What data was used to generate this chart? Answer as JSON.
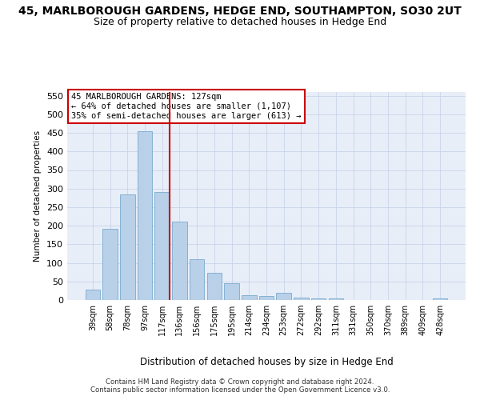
{
  "title": "45, MARLBOROUGH GARDENS, HEDGE END, SOUTHAMPTON, SO30 2UT",
  "subtitle": "Size of property relative to detached houses in Hedge End",
  "xlabel": "Distribution of detached houses by size in Hedge End",
  "ylabel": "Number of detached properties",
  "categories": [
    "39sqm",
    "58sqm",
    "78sqm",
    "97sqm",
    "117sqm",
    "136sqm",
    "156sqm",
    "175sqm",
    "195sqm",
    "214sqm",
    "234sqm",
    "253sqm",
    "272sqm",
    "292sqm",
    "311sqm",
    "331sqm",
    "350sqm",
    "370sqm",
    "389sqm",
    "409sqm",
    "428sqm"
  ],
  "values": [
    28,
    192,
    284,
    455,
    290,
    212,
    109,
    74,
    46,
    12,
    11,
    20,
    7,
    5,
    5,
    0,
    0,
    0,
    0,
    0,
    5
  ],
  "bar_color": "#b8d0e8",
  "bar_edge_color": "#7aaacf",
  "ref_bar_index": 4,
  "reference_line_color": "#cc0000",
  "annotation_text": "45 MARLBOROUGH GARDENS: 127sqm\n← 64% of detached houses are smaller (1,107)\n35% of semi-detached houses are larger (613) →",
  "annotation_box_edge_color": "#cc0000",
  "ylim": [
    0,
    560
  ],
  "yticks": [
    0,
    50,
    100,
    150,
    200,
    250,
    300,
    350,
    400,
    450,
    500,
    550
  ],
  "bg_color": "#e8eef8",
  "footer1": "Contains HM Land Registry data © Crown copyright and database right 2024.",
  "footer2": "Contains public sector information licensed under the Open Government Licence v3.0.",
  "title_fontsize": 10,
  "subtitle_fontsize": 9
}
